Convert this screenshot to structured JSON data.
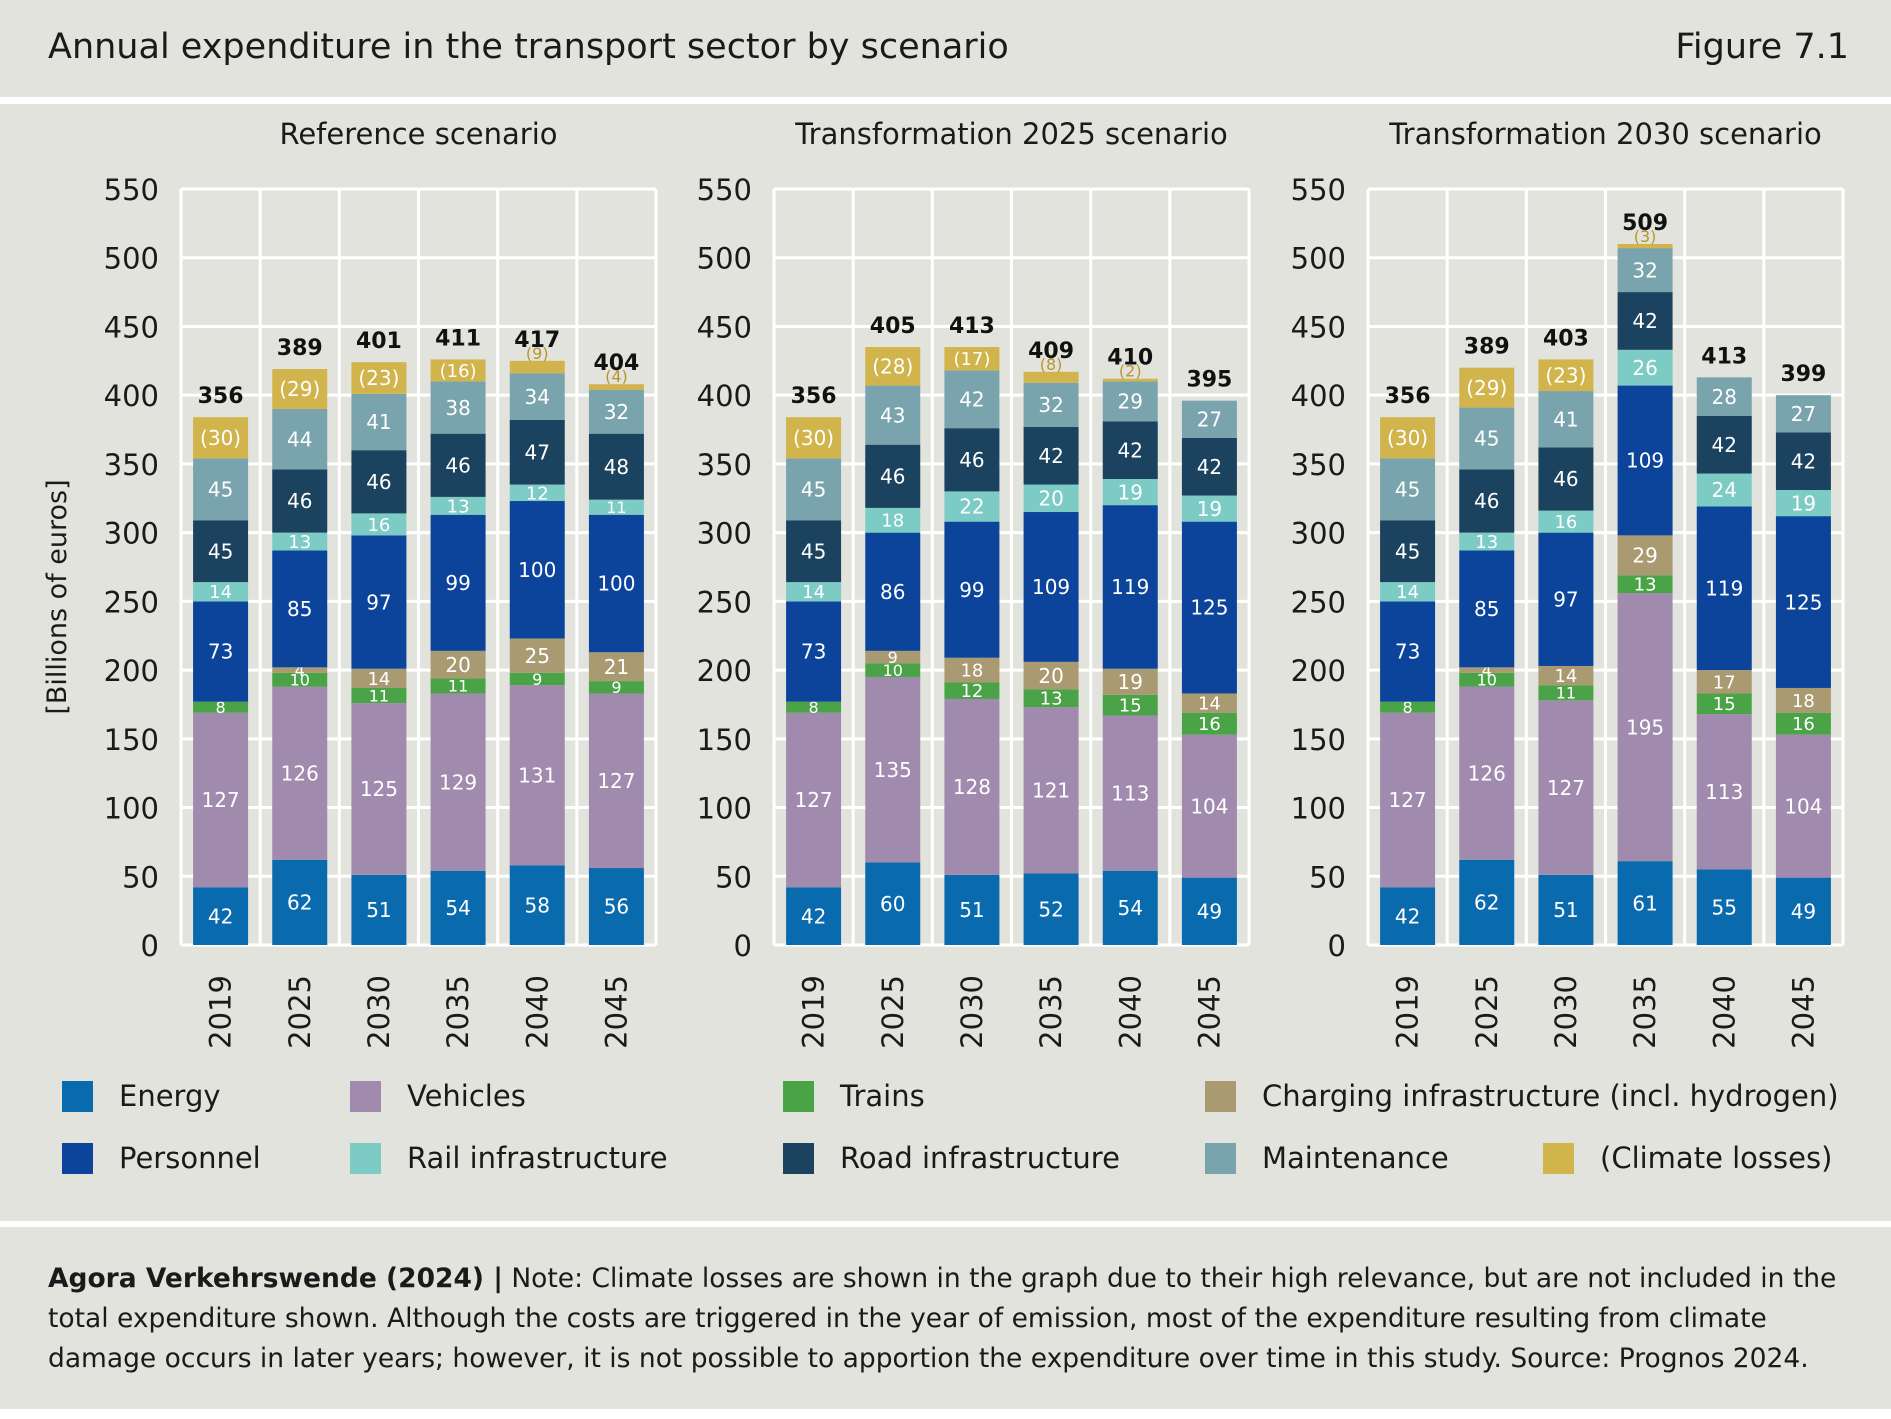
{
  "header": {
    "title": "Annual expenditure in the transport sector by scenario",
    "figure": "Figure 7.1"
  },
  "footer": {
    "source": "Agora Verkehrswende (2024) |",
    "note": " Note: Climate losses are shown in the graph due to their high relevance, but are not included in the total expenditure shown. Although the costs are triggered in the year of emission, most of the expenditure resulting from climate damage occurs in later years; however, it is not possible to apportion the expenditure over time in this study. Source: Prognos 2024."
  },
  "legend": [
    {
      "key": "energy",
      "label": "Energy",
      "color": "#0a6aae"
    },
    {
      "key": "vehicles",
      "label": "Vehicles",
      "color": "#a08aad"
    },
    {
      "key": "trains",
      "label": "Trains",
      "color": "#4aa346"
    },
    {
      "key": "charging",
      "label": "Charging infrastructure (incl. hydrogen)",
      "color": "#a99a72"
    },
    {
      "key": "personnel",
      "label": "Personnel",
      "color": "#0b449a"
    },
    {
      "key": "rail",
      "label": "Rail infrastructure",
      "color": "#7ccbc4"
    },
    {
      "key": "road",
      "label": "Road infrastructure",
      "color": "#1b425e"
    },
    {
      "key": "maintenance",
      "label": "Maintenance",
      "color": "#7aa4ad"
    },
    {
      "key": "climate",
      "label": "(Climate losses)",
      "color": "#d2b44c"
    }
  ],
  "chart_data": [
    {
      "type": "bar",
      "title": "Reference scenario",
      "ylabel": "[Billions of euros]",
      "ylim": [
        0,
        550
      ],
      "yticks": [
        "0",
        "50",
        "100",
        "150",
        "200",
        "250",
        "300",
        "350",
        "400",
        "450",
        "500",
        "550"
      ],
      "categories": [
        "2019",
        "2025",
        "2030",
        "2035",
        "2040",
        "2045"
      ],
      "totals": [
        "356",
        "389",
        "401",
        "411",
        "417",
        "404"
      ],
      "series": [
        {
          "key": "energy",
          "name": "Energy",
          "values": [
            42,
            62,
            51,
            54,
            58,
            56
          ]
        },
        {
          "key": "vehicles",
          "name": "Vehicles",
          "values": [
            127,
            126,
            125,
            129,
            131,
            127
          ]
        },
        {
          "key": "trains",
          "name": "Trains",
          "values": [
            8,
            10,
            11,
            11,
            9,
            9
          ]
        },
        {
          "key": "charging",
          "name": "Charging infrastructure (incl. hydrogen)",
          "values": [
            0,
            4,
            14,
            20,
            25,
            21
          ]
        },
        {
          "key": "personnel",
          "name": "Personnel",
          "values": [
            73,
            85,
            97,
            99,
            100,
            100
          ]
        },
        {
          "key": "rail",
          "name": "Rail infrastructure",
          "values": [
            14,
            13,
            16,
            13,
            12,
            11
          ]
        },
        {
          "key": "road",
          "name": "Road infrastructure",
          "values": [
            45,
            46,
            46,
            46,
            47,
            48
          ]
        },
        {
          "key": "maintenance",
          "name": "Maintenance",
          "values": [
            45,
            44,
            41,
            38,
            34,
            32
          ]
        },
        {
          "key": "climate",
          "name": "(Climate losses)",
          "values": [
            30,
            29,
            23,
            16,
            9,
            4
          ]
        }
      ]
    },
    {
      "type": "bar",
      "title": "Transformation 2025 scenario",
      "ylim": [
        0,
        550
      ],
      "yticks": [
        "0",
        "50",
        "100",
        "150",
        "200",
        "250",
        "300",
        "350",
        "400",
        "450",
        "500",
        "550"
      ],
      "categories": [
        "2019",
        "2025",
        "2030",
        "2035",
        "2040",
        "2045"
      ],
      "totals": [
        "356",
        "405",
        "413",
        "409",
        "410",
        "395"
      ],
      "series": [
        {
          "key": "energy",
          "name": "Energy",
          "values": [
            42,
            60,
            51,
            52,
            54,
            49
          ]
        },
        {
          "key": "vehicles",
          "name": "Vehicles",
          "values": [
            127,
            135,
            128,
            121,
            113,
            104
          ]
        },
        {
          "key": "trains",
          "name": "Trains",
          "values": [
            8,
            10,
            12,
            13,
            15,
            16
          ]
        },
        {
          "key": "charging",
          "name": "Charging infrastructure (incl. hydrogen)",
          "values": [
            0,
            9,
            18,
            20,
            19,
            14
          ]
        },
        {
          "key": "personnel",
          "name": "Personnel",
          "values": [
            73,
            86,
            99,
            109,
            119,
            125
          ]
        },
        {
          "key": "rail",
          "name": "Rail infrastructure",
          "values": [
            14,
            18,
            22,
            20,
            19,
            19
          ]
        },
        {
          "key": "road",
          "name": "Road infrastructure",
          "values": [
            45,
            46,
            46,
            42,
            42,
            42
          ]
        },
        {
          "key": "maintenance",
          "name": "Maintenance",
          "values": [
            45,
            43,
            42,
            32,
            29,
            27
          ]
        },
        {
          "key": "climate",
          "name": "(Climate losses)",
          "values": [
            30,
            28,
            17,
            8,
            2,
            0
          ]
        }
      ]
    },
    {
      "type": "bar",
      "title": "Transformation 2030 scenario",
      "ylim": [
        0,
        550
      ],
      "yticks": [
        "0",
        "50",
        "100",
        "150",
        "200",
        "250",
        "300",
        "350",
        "400",
        "450",
        "500",
        "550"
      ],
      "categories": [
        "2019",
        "2025",
        "2030",
        "2035",
        "2040",
        "2045"
      ],
      "totals": [
        "356",
        "389",
        "403",
        "509",
        "413",
        "399"
      ],
      "series": [
        {
          "key": "energy",
          "name": "Energy",
          "values": [
            42,
            62,
            51,
            61,
            55,
            49
          ]
        },
        {
          "key": "vehicles",
          "name": "Vehicles",
          "values": [
            127,
            126,
            127,
            195,
            113,
            104
          ]
        },
        {
          "key": "trains",
          "name": "Trains",
          "values": [
            8,
            10,
            11,
            13,
            15,
            16
          ]
        },
        {
          "key": "charging",
          "name": "Charging infrastructure (incl. hydrogen)",
          "values": [
            0,
            4,
            14,
            29,
            17,
            18
          ]
        },
        {
          "key": "personnel",
          "name": "Personnel",
          "values": [
            73,
            85,
            97,
            109,
            119,
            125
          ]
        },
        {
          "key": "rail",
          "name": "Rail infrastructure",
          "values": [
            14,
            13,
            16,
            26,
            24,
            19
          ]
        },
        {
          "key": "road",
          "name": "Road infrastructure",
          "values": [
            45,
            46,
            46,
            42,
            42,
            42
          ]
        },
        {
          "key": "maintenance",
          "name": "Maintenance",
          "values": [
            45,
            45,
            41,
            32,
            28,
            27
          ]
        },
        {
          "key": "climate",
          "name": "(Climate losses)",
          "values": [
            30,
            29,
            23,
            3,
            0,
            0
          ]
        }
      ]
    }
  ]
}
